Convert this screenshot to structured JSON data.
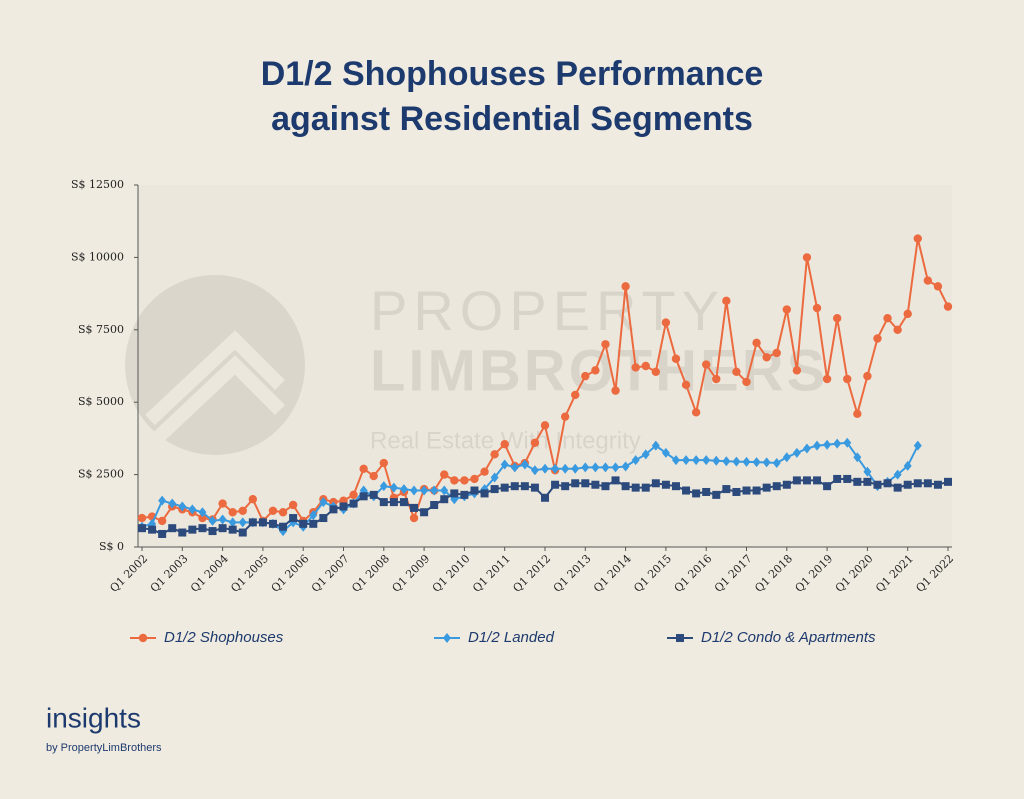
{
  "chart_data": {
    "type": "line",
    "title": [
      "D1/2 Shophouses Performance",
      "against Residential Segments"
    ],
    "categories": [
      "Q1 2002",
      null,
      null,
      null,
      "Q1 2003",
      null,
      null,
      null,
      "Q1 2004",
      null,
      null,
      null,
      "Q1 2005",
      null,
      null,
      null,
      "Q1 2006",
      null,
      null,
      null,
      "Q1 2007",
      null,
      null,
      null,
      "Q1 2008",
      null,
      null,
      null,
      "Q1 2009",
      null,
      null,
      null,
      "Q1 2010",
      null,
      null,
      null,
      "Q1 2011",
      null,
      null,
      null,
      "Q1 2012",
      null,
      null,
      null,
      "Q1 2013",
      null,
      null,
      null,
      "Q1 2014",
      null,
      null,
      null,
      "Q1 2015",
      null,
      null,
      null,
      "Q1 2016",
      null,
      null,
      null,
      "Q1 2017",
      null,
      null,
      null,
      "Q1 2018",
      null,
      null,
      null,
      "Q1 2019",
      null,
      null,
      null,
      "Q1 2020",
      null,
      null,
      null,
      "Q1 2021",
      null,
      null,
      null,
      "Q1 2022"
    ],
    "series": [
      {
        "name": "D1/2 Shophouses",
        "color": "#ec6a3f",
        "marker": "circle",
        "values": [
          1000,
          1050,
          900,
          1400,
          1300,
          1200,
          1000,
          950,
          1500,
          1200,
          1250,
          1650,
          900,
          1250,
          1200,
          1450,
          900,
          1200,
          1650,
          1550,
          1600,
          1800,
          2700,
          2450,
          2900,
          1700,
          1900,
          1000,
          2000,
          1950,
          2500,
          2300,
          2300,
          2350,
          2600,
          3200,
          3550,
          2800,
          2900,
          3600,
          4200,
          2650,
          4500,
          5250,
          5900,
          6100,
          7000,
          5400,
          9000,
          6200,
          6250,
          6050,
          7750,
          6500,
          5600,
          4650,
          6300,
          5800,
          8500,
          6050,
          5700,
          7050,
          6550,
          6700,
          8200,
          6100,
          10000,
          8250,
          5800,
          7900,
          5800,
          4600,
          5900,
          7200,
          7900,
          7500,
          8050,
          10650,
          9200,
          9000,
          8300
        ]
      },
      {
        "name": "D1/2 Landed",
        "color": "#3a9ae0",
        "marker": "diamond",
        "values": [
          700,
          800,
          1600,
          1500,
          1400,
          1300,
          1200,
          900,
          950,
          850,
          850,
          850,
          850,
          800,
          550,
          850,
          700,
          1100,
          1550,
          1400,
          1300,
          1500,
          1950,
          1750,
          2100,
          2050,
          2000,
          1950,
          1950,
          1950,
          1950,
          1650,
          1750,
          1850,
          2000,
          2400,
          2850,
          2750,
          2850,
          2650,
          2700,
          2700,
          2700,
          2700,
          2750,
          2750,
          2750,
          2750,
          2780,
          3000,
          3200,
          3500,
          3250,
          3000,
          3000,
          3000,
          3000,
          2980,
          2960,
          2950,
          2940,
          2930,
          2920,
          2900,
          3100,
          3250,
          3400,
          3500,
          3530,
          3570,
          3600,
          3100,
          2600,
          2100,
          2250,
          2500,
          2800,
          3500,
          null,
          null,
          null
        ]
      },
      {
        "name": "D1/2 Condo & Apartments",
        "color": "#2c4a7c",
        "marker": "square",
        "values": [
          650,
          600,
          450,
          650,
          500,
          600,
          650,
          550,
          650,
          600,
          500,
          850,
          850,
          800,
          700,
          1000,
          800,
          800,
          1000,
          1300,
          1400,
          1500,
          1750,
          1800,
          1550,
          1550,
          1550,
          1350,
          1200,
          1450,
          1650,
          1850,
          1800,
          1950,
          1850,
          2000,
          2050,
          2100,
          2100,
          2050,
          1700,
          2150,
          2100,
          2200,
          2200,
          2150,
          2100,
          2300,
          2100,
          2050,
          2050,
          2200,
          2150,
          2100,
          1950,
          1850,
          1900,
          1800,
          2000,
          1900,
          1950,
          1950,
          2050,
          2100,
          2150,
          2300,
          2300,
          2300,
          2100,
          2350,
          2350,
          2250,
          2250,
          2150,
          2200,
          2050,
          2150,
          2200,
          2200,
          2150,
          2250
        ]
      }
    ],
    "ylim": [
      0,
      12500
    ],
    "yticks": [
      {
        "value": 0,
        "label": "S$ 0"
      },
      {
        "value": 2500,
        "label": "S$ 2500"
      },
      {
        "value": 5000,
        "label": "S$ 5000"
      },
      {
        "value": 7500,
        "label": "S$ 7500"
      },
      {
        "value": 10000,
        "label": "S$ 10000"
      },
      {
        "value": 12500,
        "label": "S$ 12500"
      }
    ],
    "grid": false,
    "legend": "bottom"
  },
  "watermark": {
    "line1": "PROPERTY",
    "line2": "LIMBROTHERS",
    "line3": "Real Estate With Integrity"
  },
  "branding": {
    "name": "insights",
    "by": "by PropertyLimBrothers"
  }
}
